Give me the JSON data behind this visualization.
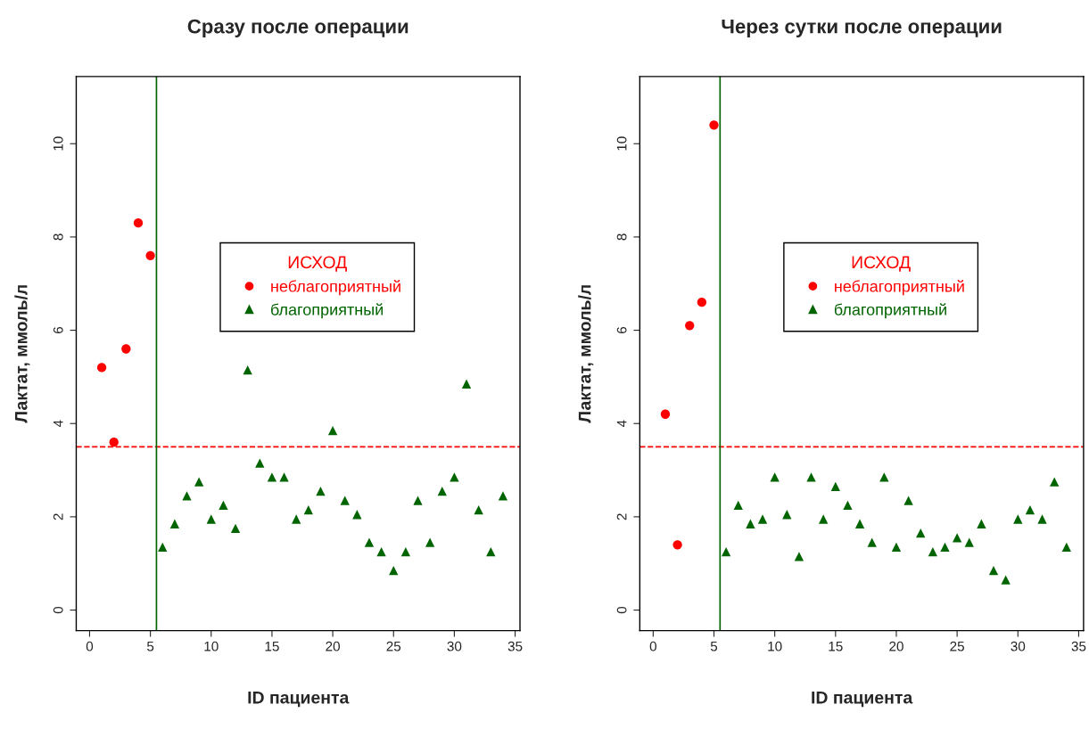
{
  "chart_data": [
    {
      "type": "scatter",
      "title": "Сразу после операции",
      "xlabel": "ID пациента",
      "ylabel": "Лактат, ммоль/л",
      "legend_title": "ИСХОД",
      "legend": "right",
      "grid": false,
      "xlim": [
        -1.1,
        35.4
      ],
      "xticks": [
        0,
        5,
        10,
        15,
        20,
        25,
        30,
        35
      ],
      "ylim": [
        -0.44,
        11.44
      ],
      "yticks": [
        0,
        2,
        4,
        6,
        8,
        10
      ],
      "series": [
        {
          "name": "неблагоприятный",
          "color": "#ff0000",
          "marker": "circle",
          "x": [
            1,
            2,
            3,
            4,
            5
          ],
          "values": [
            5.2,
            3.6,
            5.6,
            8.3,
            7.6
          ]
        },
        {
          "name": "благоприятный",
          "color": "#006400",
          "marker": "triangle",
          "x": [
            6,
            7,
            8,
            9,
            10,
            11,
            12,
            13,
            14,
            15,
            16,
            17,
            18,
            19,
            20,
            21,
            22,
            23,
            24,
            25,
            26,
            27,
            28,
            29,
            30,
            31,
            32,
            33,
            34
          ],
          "values": [
            1.35,
            1.85,
            2.45,
            2.75,
            1.95,
            2.25,
            1.75,
            5.15,
            3.15,
            2.85,
            2.85,
            1.95,
            2.15,
            2.55,
            3.85,
            2.35,
            2.05,
            1.45,
            1.25,
            0.85,
            1.25,
            2.35,
            1.45,
            2.55,
            2.85,
            4.85,
            2.15,
            1.25,
            2.45
          ]
        }
      ],
      "ref_lines": [
        {
          "axis": "y",
          "value": 3.5,
          "color": "#ff0000",
          "line_style": "dashed"
        },
        {
          "axis": "x",
          "value": 5.5,
          "color": "#006400",
          "line_style": "solid"
        }
      ]
    },
    {
      "type": "scatter",
      "title": "Через сутки после операции",
      "xlabel": "ID пациента",
      "ylabel": "Лактат, ммоль/л",
      "legend_title": "ИСХОД",
      "legend": "right",
      "grid": false,
      "xlim": [
        -1.1,
        35.4
      ],
      "xticks": [
        0,
        5,
        10,
        15,
        20,
        25,
        30,
        35
      ],
      "ylim": [
        -0.44,
        11.44
      ],
      "yticks": [
        0,
        2,
        4,
        6,
        8,
        10
      ],
      "series": [
        {
          "name": "неблагоприятный",
          "color": "#ff0000",
          "marker": "circle",
          "x": [
            1,
            2,
            3,
            4,
            5
          ],
          "values": [
            4.2,
            1.4,
            6.1,
            6.6,
            10.4
          ]
        },
        {
          "name": "благоприятный",
          "color": "#006400",
          "marker": "triangle",
          "x": [
            6,
            7,
            8,
            9,
            10,
            11,
            12,
            13,
            14,
            15,
            16,
            17,
            18,
            19,
            20,
            21,
            22,
            23,
            24,
            25,
            26,
            27,
            28,
            29,
            30,
            31,
            32,
            33,
            34
          ],
          "values": [
            1.25,
            2.25,
            1.85,
            1.95,
            2.85,
            2.05,
            1.15,
            2.85,
            1.95,
            2.65,
            2.25,
            1.85,
            1.45,
            2.85,
            1.35,
            2.35,
            1.65,
            1.25,
            1.35,
            1.55,
            1.45,
            1.85,
            0.85,
            0.65,
            1.95,
            2.15,
            1.95,
            2.75,
            1.35
          ]
        }
      ],
      "ref_lines": [
        {
          "axis": "y",
          "value": 3.5,
          "color": "#ff0000",
          "line_style": "dashed"
        },
        {
          "axis": "x",
          "value": 5.5,
          "color": "#006400",
          "line_style": "solid"
        }
      ]
    }
  ]
}
